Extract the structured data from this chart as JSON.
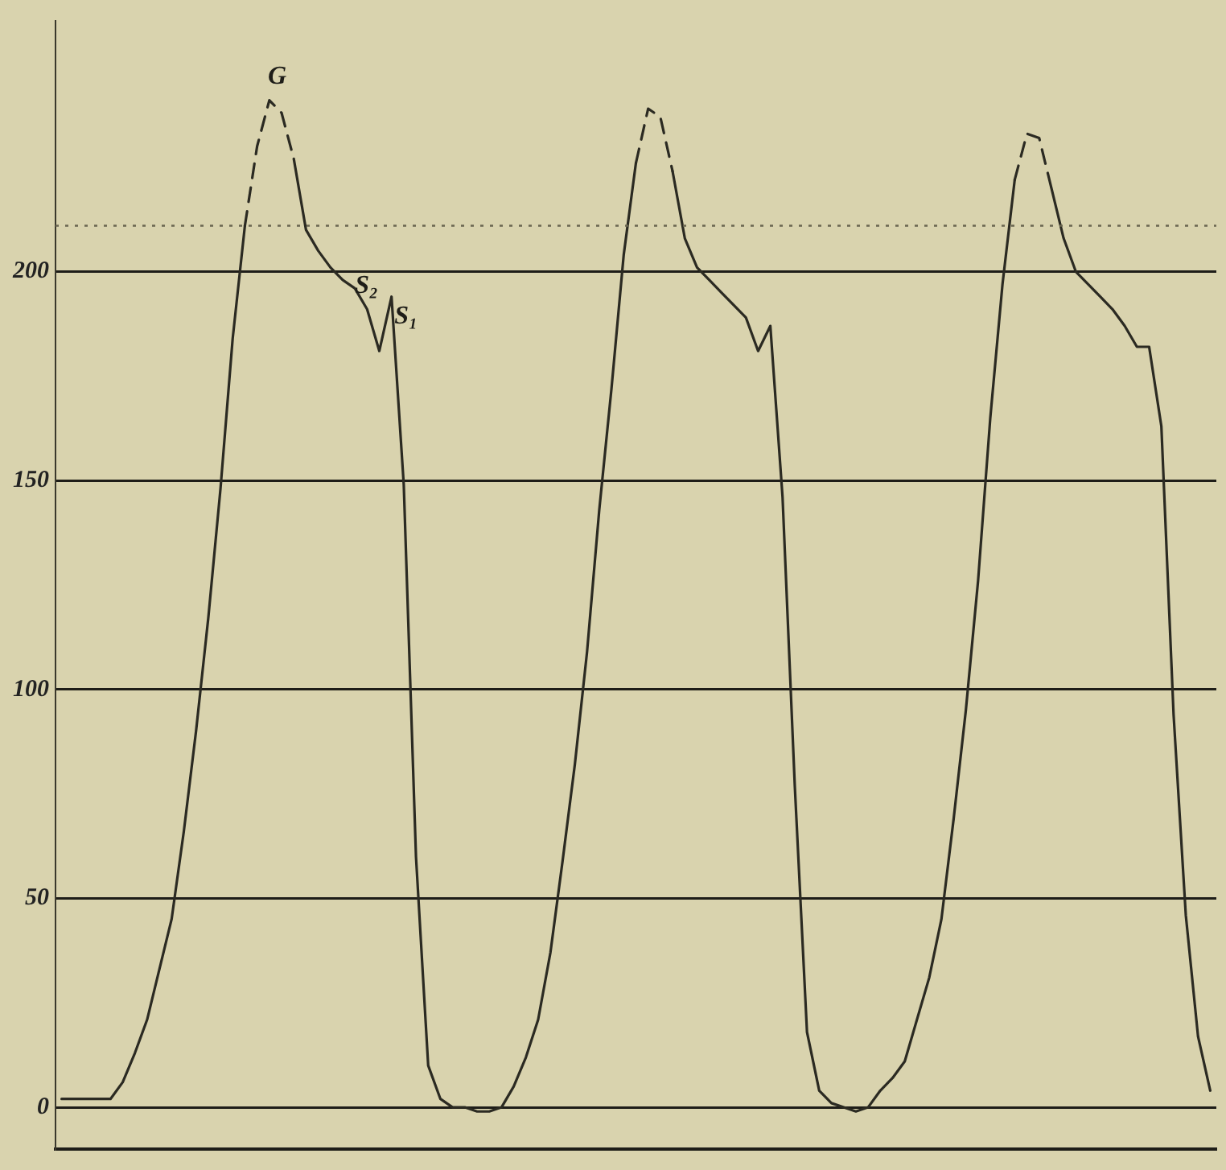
{
  "chart_data": {
    "type": "line",
    "categories": [
      null,
      null,
      null,
      null,
      null,
      null,
      null,
      null,
      null,
      null,
      null,
      null,
      null,
      null,
      null,
      null,
      null,
      null,
      null,
      null,
      null,
      null,
      null,
      null,
      null,
      null,
      null,
      null,
      null,
      null,
      null,
      null,
      null,
      null,
      null,
      null,
      null,
      null,
      null,
      null,
      null,
      null,
      null,
      null,
      null,
      null,
      null,
      null,
      null,
      null,
      null,
      null,
      null,
      null,
      null,
      null,
      null,
      null,
      null,
      null,
      null,
      null,
      null,
      null,
      null,
      null,
      null,
      null,
      null,
      null,
      null,
      null,
      null,
      null,
      null,
      null,
      null,
      null,
      null,
      null,
      null,
      null,
      null,
      null,
      null,
      null,
      null,
      null,
      null,
      null,
      null,
      null,
      null,
      null,
      null
    ],
    "ylim": [
      -10,
      260
    ],
    "yticks": [
      0,
      50,
      100,
      150,
      200
    ],
    "tick_labels": "y",
    "grid": "y",
    "marker": "none",
    "series": [
      {
        "color": "#2b2a22",
        "values": [
          2,
          2,
          2,
          2,
          2,
          6,
          13,
          21,
          33,
          45,
          66,
          90,
          117,
          148,
          184,
          211,
          230,
          241,
          238,
          227,
          210,
          205,
          201,
          198,
          196,
          191,
          181,
          194,
          149,
          60,
          10,
          2,
          0,
          0,
          -1,
          -1,
          0,
          5,
          12,
          21,
          37,
          59,
          82,
          109,
          143,
          172,
          204,
          226,
          239,
          237,
          224,
          208,
          201,
          198,
          195,
          192,
          189,
          181,
          187,
          146,
          77,
          18,
          4,
          1,
          0,
          -1,
          0,
          4,
          7,
          11,
          21,
          31,
          45,
          69,
          95,
          126,
          165,
          197,
          222,
          233,
          232,
          220,
          208,
          200,
          197,
          194,
          191,
          187,
          182,
          182,
          163,
          94,
          46,
          17,
          4
        ]
      }
    ],
    "ref_lines": [
      {
        "axis": "y",
        "value": 211,
        "line_style": "dotted",
        "color": "#6a6650"
      }
    ],
    "annotations": [
      "G",
      "S₂",
      "S₁"
    ]
  }
}
